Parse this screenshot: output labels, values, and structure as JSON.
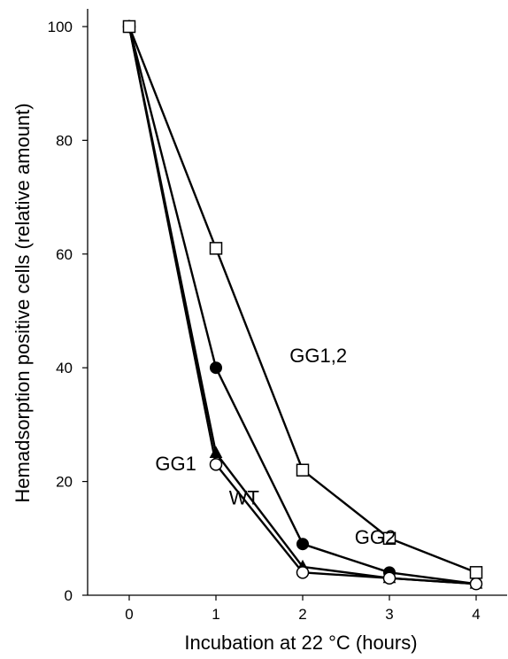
{
  "chart_data": {
    "type": "line",
    "xlabel": "Incubation at 22 °C (hours)",
    "ylabel": "Hemadsorption positive cells (relative amount)",
    "xlim": [
      -0.6,
      4.3
    ],
    "ylim": [
      0,
      102
    ],
    "x_ticks": [
      0,
      1,
      2,
      3,
      4
    ],
    "y_ticks": [
      0,
      20,
      40,
      60,
      80,
      100
    ],
    "series": [
      {
        "name": "GG1,2",
        "marker": "square-open",
        "x": [
          0,
          1,
          2,
          3,
          4
        ],
        "y": [
          100,
          61,
          22,
          10,
          4
        ]
      },
      {
        "name": "GG2",
        "marker": "circle-filled",
        "x": [
          0,
          1,
          2,
          3,
          4
        ],
        "y": [
          100,
          40,
          9,
          4,
          2
        ]
      },
      {
        "name": "GG1",
        "marker": "triangle-filled",
        "x": [
          0,
          1,
          2,
          3,
          4
        ],
        "y": [
          100,
          25,
          5,
          3,
          2
        ]
      },
      {
        "name": "WT",
        "marker": "circle-open",
        "x": [
          0,
          1,
          2,
          3,
          4
        ],
        "y": [
          100,
          23,
          4,
          3,
          2
        ]
      }
    ],
    "annotations": [
      {
        "text": "GG1,2",
        "x": 1.85,
        "y": 41
      },
      {
        "text": "GG2",
        "x": 2.6,
        "y": 9
      },
      {
        "text": "GG1",
        "x": 0.3,
        "y": 22
      },
      {
        "text": "WT",
        "x": 1.15,
        "y": 16
      }
    ],
    "grid": false,
    "legend": "none",
    "line_color": "#000000"
  }
}
